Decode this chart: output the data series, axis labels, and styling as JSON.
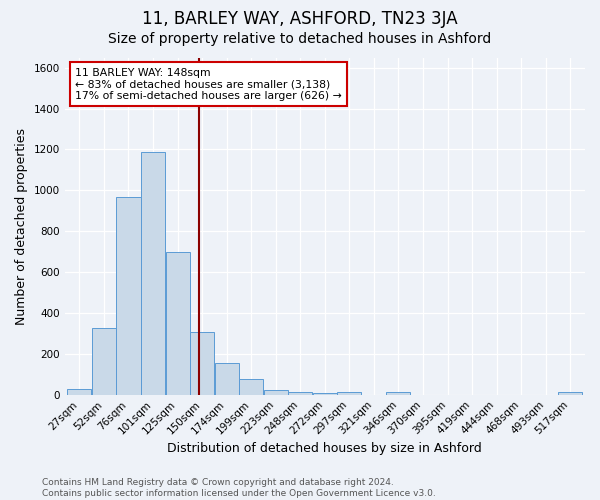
{
  "title": "11, BARLEY WAY, ASHFORD, TN23 3JA",
  "subtitle": "Size of property relative to detached houses in Ashford",
  "xlabel": "Distribution of detached houses by size in Ashford",
  "ylabel": "Number of detached properties",
  "bin_labels": [
    "27sqm",
    "52sqm",
    "76sqm",
    "101sqm",
    "125sqm",
    "150sqm",
    "174sqm",
    "199sqm",
    "223sqm",
    "248sqm",
    "272sqm",
    "297sqm",
    "321sqm",
    "346sqm",
    "370sqm",
    "395sqm",
    "419sqm",
    "444sqm",
    "468sqm",
    "493sqm",
    "517sqm"
  ],
  "bar_heights": [
    28,
    325,
    968,
    1190,
    700,
    305,
    153,
    78,
    25,
    15,
    10,
    12,
    0,
    12,
    0,
    0,
    0,
    0,
    0,
    0,
    12
  ],
  "bar_color": "#c9d9e8",
  "bar_edge_color": "#5b9bd5",
  "vline_color": "#8b0000",
  "annotation_text": "11 BARLEY WAY: 148sqm\n← 83% of detached houses are smaller (3,138)\n17% of semi-detached houses are larger (626) →",
  "annotation_box_color": "#ffffff",
  "annotation_box_edge": "#cc0000",
  "ylim": [
    0,
    1650
  ],
  "yticks": [
    0,
    200,
    400,
    600,
    800,
    1000,
    1200,
    1400,
    1600
  ],
  "footnote": "Contains HM Land Registry data © Crown copyright and database right 2024.\nContains public sector information licensed under the Open Government Licence v3.0.",
  "bg_color": "#eef2f8",
  "grid_color": "#ffffff",
  "title_fontsize": 12,
  "subtitle_fontsize": 10,
  "label_fontsize": 9,
  "tick_fontsize": 7.5,
  "footnote_fontsize": 6.5,
  "vline_pos": 4.88
}
